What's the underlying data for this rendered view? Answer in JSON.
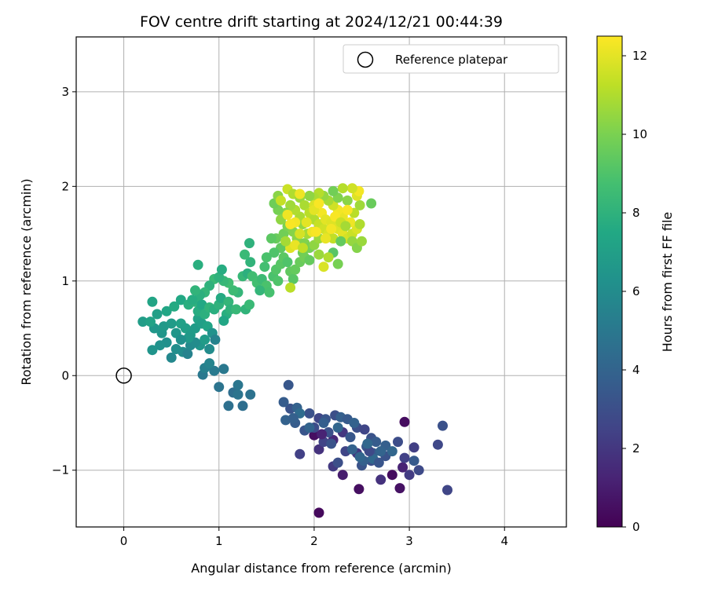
{
  "chart_data": {
    "type": "scatter",
    "title": "FOV centre drift starting at 2024/12/21 00:44:39",
    "xlabel": "Angular distance from reference (arcmin)",
    "ylabel": "Rotation from reference (arcmin)",
    "xlim": [
      -0.5,
      4.65
    ],
    "ylim": [
      -1.6,
      3.58
    ],
    "xticks": [
      "0",
      "1",
      "2",
      "3",
      "4"
    ],
    "yticks": [
      "−1",
      "0",
      "1",
      "2",
      "3"
    ],
    "grid": true,
    "legend": {
      "placement": "top-right",
      "entries": [
        "Reference platepar"
      ]
    },
    "reference_point": {
      "x": 0,
      "y": 0
    },
    "colorbar": {
      "label": "Hours from first FF file",
      "range": [
        0,
        12.5
      ],
      "ticks": [
        "0",
        "2",
        "4",
        "6",
        "8",
        "10",
        "12"
      ],
      "colormap": "viridis"
    },
    "points": [
      [
        2.05,
        -1.45,
        0.3
      ],
      [
        3.4,
        -1.21,
        2.6
      ],
      [
        2.47,
        -1.2,
        0.5
      ],
      [
        2.9,
        -1.19,
        0.6
      ],
      [
        2.3,
        -1.05,
        1.0
      ],
      [
        2.7,
        -1.1,
        1.8
      ],
      [
        2.82,
        -1.05,
        0.4
      ],
      [
        3.0,
        -1.05,
        2.2
      ],
      [
        3.1,
        -1.0,
        2.8
      ],
      [
        2.93,
        -0.97,
        1.2
      ],
      [
        2.2,
        -0.96,
        2.1
      ],
      [
        2.6,
        -0.9,
        3.0
      ],
      [
        2.5,
        -0.95,
        3.2
      ],
      [
        3.05,
        -0.9,
        3.5
      ],
      [
        2.95,
        -0.87,
        2.4
      ],
      [
        2.75,
        -0.85,
        3.2
      ],
      [
        2.62,
        -0.82,
        3.6
      ],
      [
        2.45,
        -0.82,
        2.0
      ],
      [
        2.33,
        -0.8,
        2.6
      ],
      [
        2.05,
        -0.78,
        1.8
      ],
      [
        1.85,
        -0.83,
        2.4
      ],
      [
        2.1,
        -0.7,
        2.5
      ],
      [
        2.2,
        -0.68,
        1.4
      ],
      [
        2.0,
        -0.63,
        0.5
      ],
      [
        2.15,
        -0.6,
        3.1
      ],
      [
        2.3,
        -0.6,
        2.0
      ],
      [
        2.38,
        -0.65,
        3.4
      ],
      [
        2.45,
        -0.55,
        3.0
      ],
      [
        2.53,
        -0.57,
        2.6
      ],
      [
        2.6,
        -0.66,
        3.2
      ],
      [
        2.65,
        -0.7,
        3.6
      ],
      [
        2.75,
        -0.74,
        3.8
      ],
      [
        2.88,
        -0.7,
        2.9
      ],
      [
        3.05,
        -0.76,
        2.3
      ],
      [
        3.3,
        -0.73,
        2.7
      ],
      [
        3.35,
        -0.53,
        3.1
      ],
      [
        2.95,
        -0.49,
        0.4
      ],
      [
        2.0,
        -0.55,
        2.9
      ],
      [
        1.9,
        -0.58,
        3.3
      ],
      [
        1.8,
        -0.5,
        3.6
      ],
      [
        1.7,
        -0.47,
        3.9
      ],
      [
        1.75,
        -0.35,
        3.2
      ],
      [
        1.68,
        -0.28,
        3.6
      ],
      [
        1.73,
        -0.1,
        3.4
      ],
      [
        1.82,
        -0.34,
        3.9
      ],
      [
        1.95,
        -0.4,
        3.1
      ],
      [
        2.05,
        -0.45,
        2.6
      ],
      [
        2.12,
        -0.46,
        3.3
      ],
      [
        2.22,
        -0.42,
        3.0
      ],
      [
        2.28,
        -0.44,
        3.8
      ],
      [
        2.35,
        -0.46,
        3.5
      ],
      [
        2.42,
        -0.5,
        3.9
      ],
      [
        2.55,
        -0.75,
        3.4
      ],
      [
        2.7,
        -0.8,
        4.0
      ],
      [
        2.62,
        -0.88,
        4.2
      ],
      [
        2.52,
        -0.9,
        3.8
      ],
      [
        2.82,
        -0.8,
        4.1
      ],
      [
        1.85,
        -0.4,
        4.4
      ],
      [
        1.95,
        -0.55,
        4.0
      ],
      [
        2.1,
        -0.5,
        3.7
      ],
      [
        2.18,
        -0.72,
        3.2
      ],
      [
        2.4,
        -0.78,
        3.9
      ],
      [
        2.48,
        -0.86,
        4.1
      ],
      [
        2.58,
        -0.8,
        2.8
      ],
      [
        2.68,
        -0.92,
        3.3
      ],
      [
        2.25,
        -0.92,
        3.0
      ],
      [
        1.78,
        -0.45,
        3.8
      ],
      [
        2.08,
        -0.62,
        1.2
      ],
      [
        2.56,
        -0.72,
        4.2
      ],
      [
        2.25,
        -0.55,
        4.1
      ],
      [
        1.0,
        -0.12,
        4.8
      ],
      [
        1.1,
        -0.32,
        4.6
      ],
      [
        1.15,
        -0.18,
        4.5
      ],
      [
        1.2,
        -0.2,
        4.8
      ],
      [
        1.25,
        -0.32,
        4.5
      ],
      [
        1.33,
        -0.2,
        4.7
      ],
      [
        1.2,
        -0.1,
        4.9
      ],
      [
        1.05,
        0.07,
        5.0
      ],
      [
        0.95,
        0.05,
        5.1
      ],
      [
        0.83,
        0.01,
        5.0
      ],
      [
        0.85,
        0.08,
        5.4
      ],
      [
        0.9,
        0.13,
        5.6
      ],
      [
        0.5,
        0.19,
        5.8
      ],
      [
        0.62,
        0.25,
        6.0
      ],
      [
        0.67,
        0.23,
        5.5
      ],
      [
        0.7,
        0.32,
        5.9
      ],
      [
        0.55,
        0.28,
        6.1
      ],
      [
        0.45,
        0.35,
        6.2
      ],
      [
        0.38,
        0.32,
        6.3
      ],
      [
        0.3,
        0.27,
        6.4
      ],
      [
        0.4,
        0.45,
        6.5
      ],
      [
        0.32,
        0.5,
        6.6
      ],
      [
        0.42,
        0.52,
        6.7
      ],
      [
        0.5,
        0.55,
        6.8
      ],
      [
        0.55,
        0.45,
        6.5
      ],
      [
        0.6,
        0.55,
        7.1
      ],
      [
        0.65,
        0.5,
        7.0
      ],
      [
        0.7,
        0.43,
        6.8
      ],
      [
        0.75,
        0.5,
        6.8
      ],
      [
        0.78,
        0.6,
        7.2
      ],
      [
        0.82,
        0.55,
        7.0
      ],
      [
        0.88,
        0.52,
        7.3
      ],
      [
        0.93,
        0.45,
        6.3
      ],
      [
        0.96,
        0.38,
        5.5
      ],
      [
        0.9,
        0.28,
        6.0
      ],
      [
        0.8,
        0.32,
        6.5
      ],
      [
        0.85,
        0.38,
        6.8
      ],
      [
        0.75,
        0.35,
        6.0
      ],
      [
        0.68,
        0.4,
        6.7
      ],
      [
        0.6,
        0.38,
        6.2
      ],
      [
        0.2,
        0.57,
        6.9
      ],
      [
        0.28,
        0.57,
        7.2
      ],
      [
        0.35,
        0.65,
        7.0
      ],
      [
        0.3,
        0.78,
        7.3
      ],
      [
        0.45,
        0.68,
        7.4
      ],
      [
        0.53,
        0.73,
        7.6
      ],
      [
        0.6,
        0.8,
        7.5
      ],
      [
        0.68,
        0.75,
        7.8
      ],
      [
        0.75,
        0.78,
        8.0
      ],
      [
        0.78,
        0.68,
        7.7
      ],
      [
        0.82,
        0.75,
        7.5
      ],
      [
        0.85,
        0.65,
        7.9
      ],
      [
        0.9,
        0.72,
        8.1
      ],
      [
        0.95,
        0.7,
        7.8
      ],
      [
        1.0,
        0.75,
        8.0
      ],
      [
        1.02,
        0.82,
        7.6
      ],
      [
        1.1,
        0.78,
        8.2
      ],
      [
        1.08,
        0.65,
        7.8
      ],
      [
        1.05,
        0.58,
        7.4
      ],
      [
        1.12,
        0.7,
        8.0
      ],
      [
        1.18,
        0.7,
        8.3
      ],
      [
        1.28,
        0.7,
        8.1
      ],
      [
        1.32,
        0.75,
        8.4
      ],
      [
        1.2,
        0.88,
        8.2
      ],
      [
        1.15,
        0.9,
        8.5
      ],
      [
        1.1,
        0.98,
        8.6
      ],
      [
        1.05,
        1.0,
        8.3
      ],
      [
        0.95,
        1.02,
        8.4
      ],
      [
        0.9,
        0.95,
        8.0
      ],
      [
        0.85,
        0.88,
        8.2
      ],
      [
        0.8,
        0.85,
        7.9
      ],
      [
        0.75,
        0.9,
        8.1
      ],
      [
        0.72,
        0.8,
        7.7
      ],
      [
        0.78,
        1.17,
        7.8
      ],
      [
        1.0,
        1.04,
        8.0
      ],
      [
        1.03,
        1.12,
        7.7
      ],
      [
        1.25,
        1.05,
        8.3
      ],
      [
        1.3,
        1.08,
        7.9
      ],
      [
        1.33,
        1.2,
        8.1
      ],
      [
        1.27,
        1.28,
        8.4
      ],
      [
        1.32,
        1.4,
        8.0
      ],
      [
        1.35,
        1.05,
        8.6
      ],
      [
        1.4,
        0.98,
        8.7
      ],
      [
        1.45,
        1.02,
        8.5
      ],
      [
        1.5,
        0.95,
        8.9
      ],
      [
        1.43,
        0.9,
        8.2
      ],
      [
        1.53,
        0.88,
        8.8
      ],
      [
        1.57,
        1.05,
        8.9
      ],
      [
        1.62,
        1.0,
        9.0
      ],
      [
        1.6,
        1.12,
        9.1
      ],
      [
        1.65,
        1.18,
        9.2
      ],
      [
        1.68,
        1.25,
        9.3
      ],
      [
        1.72,
        1.2,
        9.0
      ],
      [
        1.75,
        1.1,
        9.4
      ],
      [
        1.78,
        1.02,
        9.2
      ],
      [
        1.8,
        1.12,
        9.5
      ],
      [
        1.85,
        1.2,
        9.6
      ],
      [
        1.88,
        1.3,
        9.7
      ],
      [
        1.65,
        1.35,
        9.4
      ],
      [
        1.6,
        1.45,
        9.6
      ],
      [
        1.55,
        1.45,
        9.3
      ],
      [
        1.58,
        1.3,
        9.0
      ],
      [
        1.5,
        1.25,
        8.9
      ],
      [
        1.48,
        1.15,
        8.7
      ],
      [
        1.68,
        1.5,
        9.8
      ],
      [
        1.72,
        1.58,
        10.0
      ],
      [
        1.78,
        1.52,
        10.2
      ],
      [
        1.82,
        1.45,
        10.3
      ],
      [
        1.9,
        1.4,
        10.1
      ],
      [
        1.95,
        1.35,
        9.9
      ],
      [
        2.0,
        1.38,
        10.4
      ],
      [
        2.05,
        1.45,
        10.6
      ],
      [
        1.93,
        1.5,
        10.8
      ],
      [
        1.88,
        1.6,
        10.5
      ],
      [
        1.85,
        1.68,
        10.9
      ],
      [
        1.8,
        1.75,
        11.0
      ],
      [
        1.75,
        1.8,
        10.7
      ],
      [
        1.7,
        1.72,
        10.2
      ],
      [
        1.65,
        1.65,
        10.4
      ],
      [
        1.62,
        1.75,
        9.9
      ],
      [
        1.58,
        1.82,
        9.7
      ],
      [
        1.62,
        1.9,
        10.3
      ],
      [
        1.72,
        1.97,
        11.5
      ],
      [
        1.78,
        1.92,
        11.0
      ],
      [
        1.85,
        1.88,
        10.6
      ],
      [
        1.9,
        1.8,
        10.9
      ],
      [
        1.95,
        1.72,
        11.2
      ],
      [
        2.0,
        1.65,
        11.0
      ],
      [
        2.05,
        1.6,
        11.4
      ],
      [
        2.1,
        1.55,
        11.6
      ],
      [
        2.15,
        1.5,
        11.8
      ],
      [
        2.2,
        1.45,
        11.3
      ],
      [
        2.25,
        1.55,
        11.9
      ],
      [
        2.3,
        1.5,
        12.0
      ],
      [
        2.35,
        1.45,
        11.7
      ],
      [
        2.4,
        1.5,
        11.5
      ],
      [
        2.45,
        1.55,
        11.8
      ],
      [
        2.38,
        1.62,
        12.2
      ],
      [
        2.3,
        1.68,
        12.1
      ],
      [
        2.25,
        1.75,
        12.3
      ],
      [
        2.2,
        1.8,
        11.6
      ],
      [
        2.15,
        1.85,
        10.8
      ],
      [
        2.1,
        1.9,
        10.5
      ],
      [
        2.05,
        1.93,
        11.1
      ],
      [
        2.0,
        1.88,
        10.9
      ],
      [
        1.95,
        1.9,
        10.4
      ],
      [
        2.0,
        1.8,
        11.8
      ],
      [
        2.08,
        1.72,
        12.3
      ],
      [
        2.12,
        1.65,
        12.0
      ],
      [
        2.18,
        1.62,
        11.9
      ],
      [
        2.22,
        1.68,
        12.4
      ],
      [
        2.28,
        1.62,
        11.5
      ],
      [
        2.33,
        1.58,
        10.8
      ],
      [
        2.4,
        1.42,
        10.5
      ],
      [
        2.45,
        1.35,
        10.2
      ],
      [
        2.5,
        1.42,
        10.6
      ],
      [
        2.48,
        1.6,
        11.0
      ],
      [
        2.42,
        1.72,
        11.2
      ],
      [
        2.48,
        1.8,
        10.7
      ],
      [
        2.45,
        1.9,
        11.9
      ],
      [
        2.47,
        1.95,
        12.3
      ],
      [
        2.4,
        1.98,
        11.6
      ],
      [
        2.35,
        1.85,
        10.3
      ],
      [
        2.3,
        1.98,
        11.1
      ],
      [
        2.25,
        1.88,
        10.1
      ],
      [
        2.2,
        1.95,
        9.8
      ],
      [
        2.6,
        1.82,
        9.6
      ],
      [
        2.28,
        1.42,
        9.5
      ],
      [
        2.2,
        1.3,
        9.2
      ],
      [
        2.1,
        1.15,
        11.8
      ],
      [
        2.25,
        1.18,
        9.9
      ],
      [
        2.15,
        1.25,
        11.0
      ],
      [
        2.05,
        1.28,
        10.6
      ],
      [
        1.9,
        1.25,
        9.8
      ],
      [
        1.95,
        1.22,
        9.5
      ],
      [
        1.75,
        0.93,
        11.2
      ],
      [
        1.75,
        1.35,
        11.9
      ],
      [
        1.8,
        1.38,
        12.1
      ],
      [
        1.85,
        1.5,
        11.7
      ],
      [
        1.92,
        1.62,
        12.0
      ],
      [
        1.98,
        1.52,
        12.2
      ],
      [
        2.02,
        1.52,
        12.4
      ],
      [
        1.88,
        1.35,
        11.3
      ],
      [
        2.0,
        1.75,
        12.0
      ],
      [
        1.8,
        1.62,
        12.3
      ],
      [
        1.7,
        1.42,
        10.8
      ],
      [
        1.75,
        1.6,
        12.4
      ],
      [
        2.12,
        1.45,
        12.1
      ],
      [
        2.18,
        1.55,
        12.3
      ],
      [
        2.35,
        1.75,
        12.4
      ],
      [
        1.85,
        1.92,
        12.2
      ],
      [
        1.65,
        1.85,
        11.4
      ],
      [
        2.05,
        1.82,
        12.4
      ],
      [
        1.72,
        1.7,
        12.2
      ]
    ]
  }
}
